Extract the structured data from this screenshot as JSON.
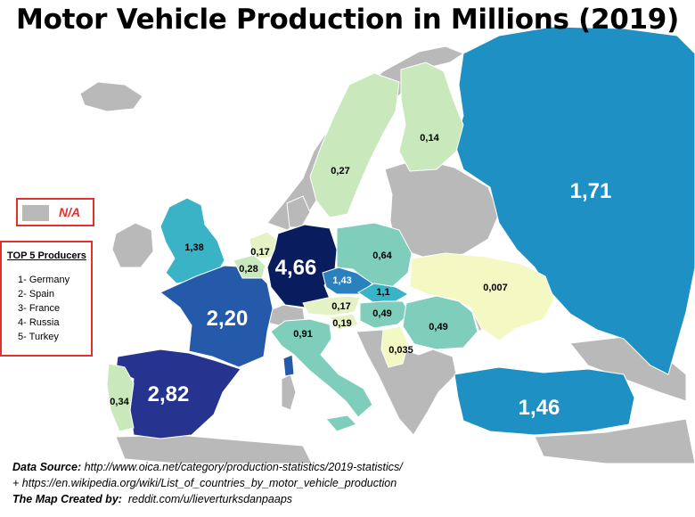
{
  "title": "Motor Vehicle Production in Millions (2019)",
  "legend": {
    "na_label": "N/A",
    "na_color": "#b9b9b9",
    "top5_title": "TOP 5 Producers",
    "top5": [
      "1- Germany",
      "2- Spain",
      "3- France",
      "4- Russia",
      "5- Turkey"
    ]
  },
  "countries": {
    "germany": {
      "value": "4,66",
      "color": "#091d5e"
    },
    "spain": {
      "value": "2,82",
      "color": "#26348f"
    },
    "france": {
      "value": "2,20",
      "color": "#245aa9"
    },
    "russia": {
      "value": "1,71",
      "color": "#1f90c4"
    },
    "turkey": {
      "value": "1,46",
      "color": "#1f90c4"
    },
    "czechia": {
      "value": "1,43",
      "color": "#2a81bd"
    },
    "uk": {
      "value": "1,38",
      "color": "#3bb3c6"
    },
    "slovakia": {
      "value": "1,1",
      "color": "#3bb3c6"
    },
    "italy": {
      "value": "0,91",
      "color": "#7ecebb"
    },
    "poland": {
      "value": "0,64",
      "color": "#7ecebb"
    },
    "hungary": {
      "value": "0,49",
      "color": "#7ecebb"
    },
    "romania": {
      "value": "0,49",
      "color": "#7ecebb"
    },
    "portugal": {
      "value": "0,34",
      "color": "#c9e8bb"
    },
    "belgium": {
      "value": "0,28",
      "color": "#c9e8bb"
    },
    "sweden": {
      "value": "0,27",
      "color": "#c9e8bb"
    },
    "slovenia": {
      "value": "0,19",
      "color": "#e4f2c6"
    },
    "austria": {
      "value": "0,17",
      "color": "#e4f2c6"
    },
    "netherlands": {
      "value": "0,17",
      "color": "#e4f2c6"
    },
    "finland": {
      "value": "0,14",
      "color": "#c9e8bb"
    },
    "serbia": {
      "value": "0,035",
      "color": "#f4f8c2"
    },
    "ukraine": {
      "value": "0,007",
      "color": "#f4f8c2"
    }
  },
  "source": {
    "label": "Data Source:",
    "line1": "http://www.oica.net/category/production-statistics/2019-statistics/",
    "line2": "+ https://en.wikipedia.org/wiki/List_of_countries_by_motor_vehicle_production",
    "credit_label": "The Map Created by:",
    "credit": "reddit.com/u/lieverturksdanpaaps"
  }
}
